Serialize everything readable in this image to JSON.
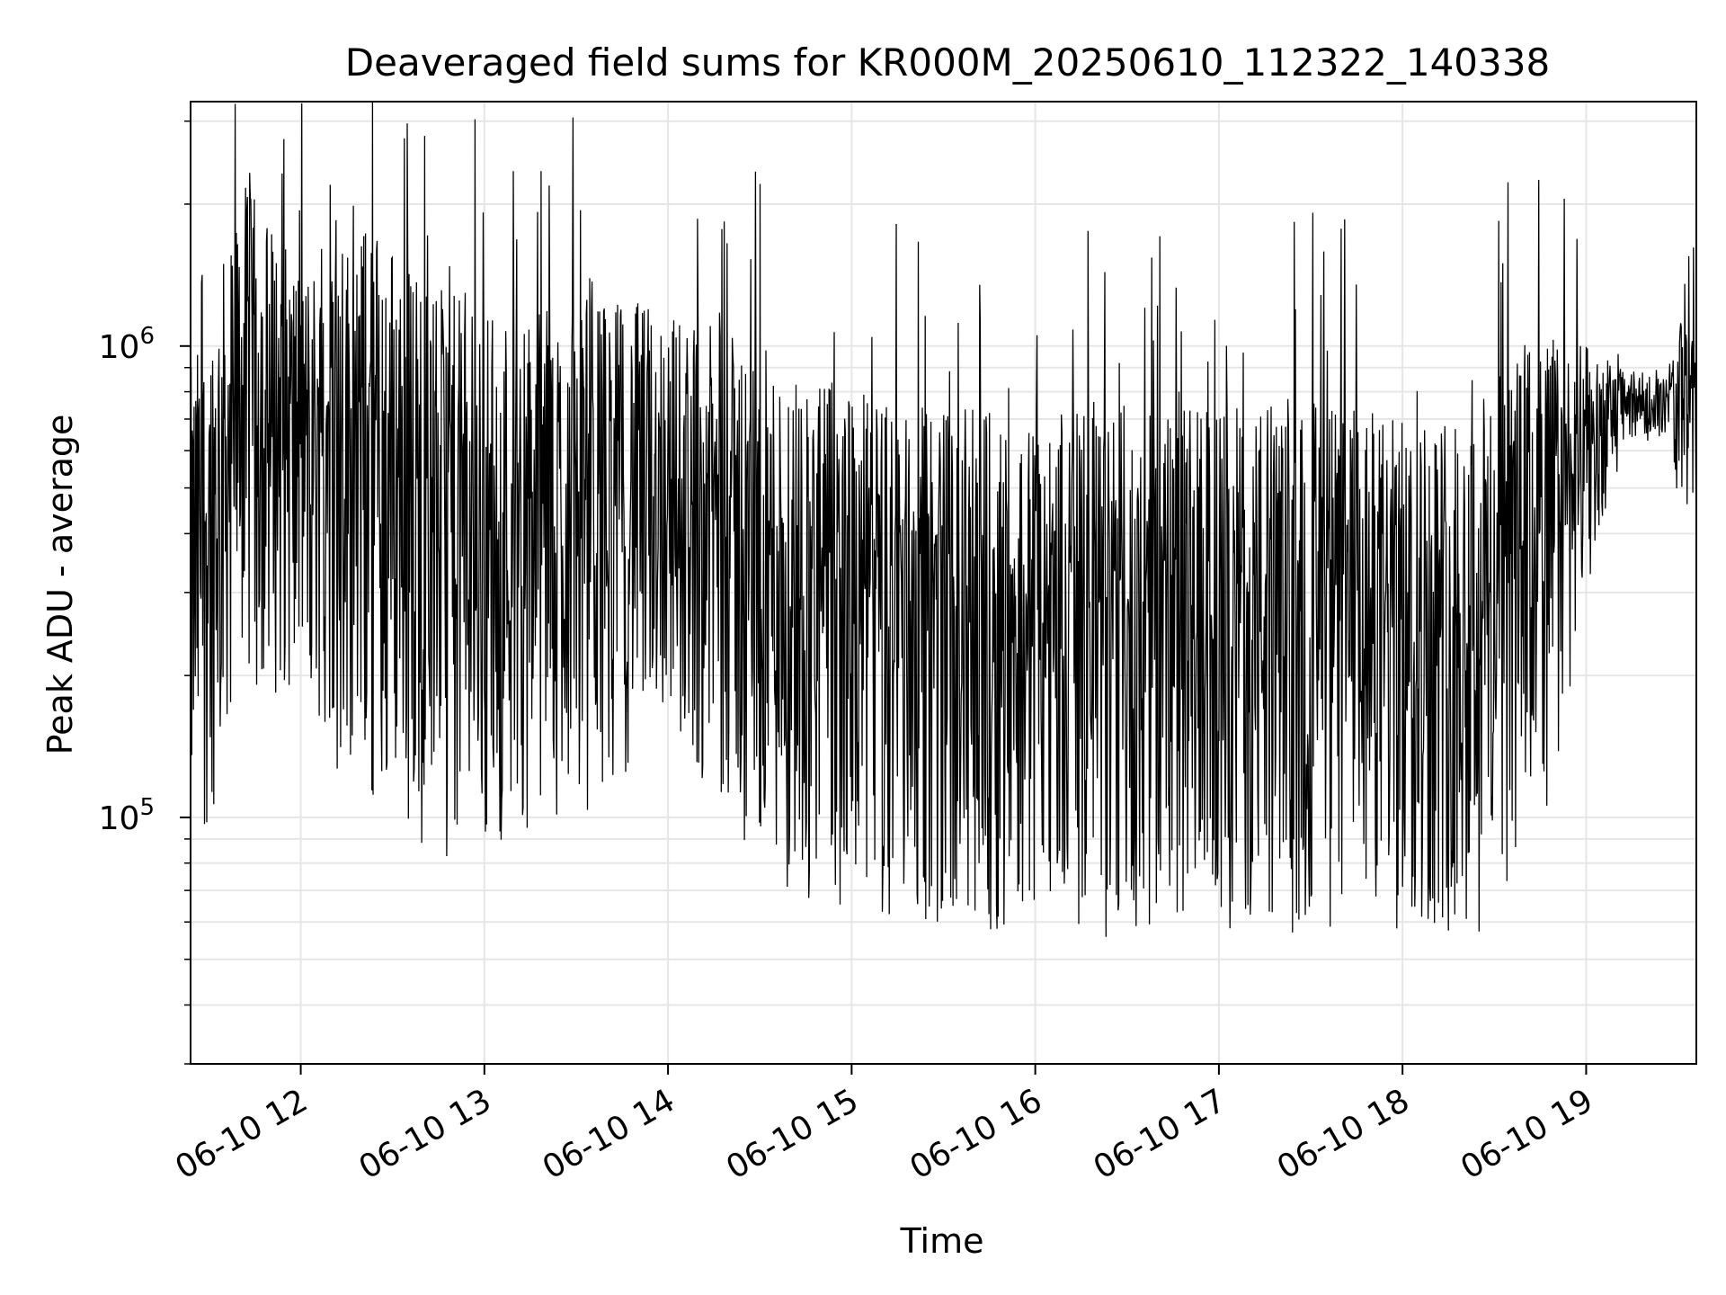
{
  "chart_data": {
    "type": "line",
    "title": "Deaveraged field sums for KR000M_20250610_112322_140338",
    "xlabel": "Time",
    "ylabel": "Peak ADU - average",
    "x_tick_labels": [
      "06-10 12",
      "06-10 13",
      "06-10 14",
      "06-10 15",
      "06-10 16",
      "06-10 17",
      "06-10 18",
      "06-10 19"
    ],
    "y_tick_labels": [
      {
        "base": "10",
        "exp": "5",
        "value": 100000
      },
      {
        "base": "10",
        "exp": "6",
        "value": 1000000
      }
    ],
    "x_range_hours": [
      11.4,
      19.6
    ],
    "ylim": [
      30000,
      3300000
    ],
    "yscale": "log",
    "grid": true,
    "line_color": "#000000",
    "envelope": {
      "note_hours": [
        11.4,
        11.7,
        12.0,
        12.4,
        12.8,
        13.2,
        13.6,
        14.0,
        14.5,
        15.0,
        15.5,
        16.0,
        16.5,
        17.0,
        17.5,
        18.0,
        18.4,
        18.8,
        19.0,
        19.2,
        19.45,
        19.6
      ],
      "upper": [
        900000,
        2200000,
        1500000,
        1900000,
        1300000,
        1200000,
        1300000,
        1200000,
        1000000,
        800000,
        750000,
        700000,
        750000,
        750000,
        800000,
        700000,
        800000,
        1100000,
        1000000,
        900000,
        850000,
        2000000
      ],
      "lower": [
        60000,
        200000,
        150000,
        100000,
        80000,
        90000,
        100000,
        150000,
        70000,
        60000,
        60000,
        55000,
        55000,
        55000,
        55000,
        55000,
        55000,
        90000,
        300000,
        600000,
        650000,
        250000
      ]
    }
  }
}
